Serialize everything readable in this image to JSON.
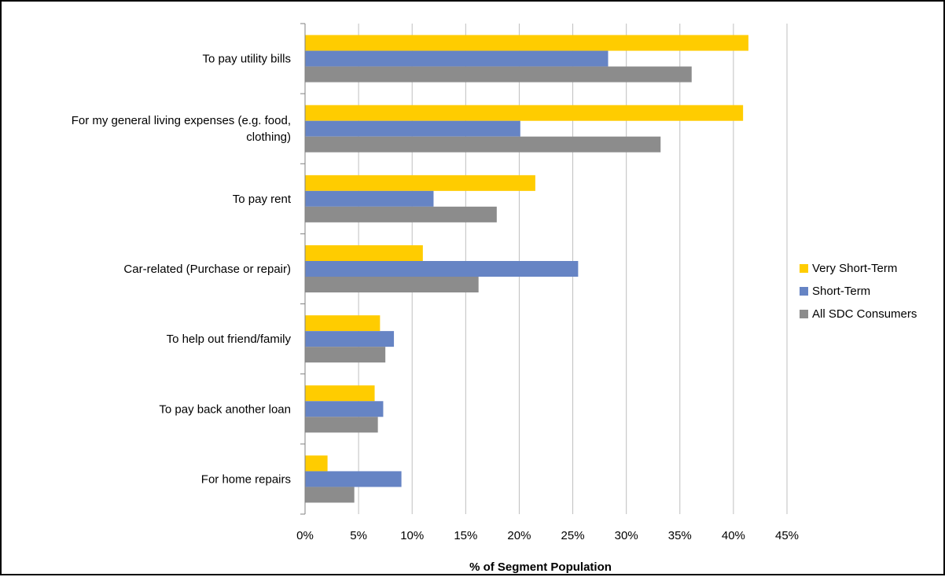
{
  "chart_data": {
    "type": "bar",
    "orientation": "horizontal",
    "categories": [
      [
        "To pay utility bills"
      ],
      [
        "For my general living expenses (e.g. food,",
        "clothing)"
      ],
      [
        "To pay rent"
      ],
      [
        "Car-related (Purchase or repair)"
      ],
      [
        "To help out friend/family"
      ],
      [
        "To pay back another loan"
      ],
      [
        "For home repairs"
      ]
    ],
    "series": [
      {
        "name": "Very Short-Term",
        "color": "#FFCC00",
        "values": [
          41.4,
          40.9,
          21.5,
          11.0,
          7.0,
          6.5,
          2.1
        ]
      },
      {
        "name": "Short-Term",
        "color": "#6684C4",
        "values": [
          28.3,
          20.1,
          12.0,
          25.5,
          8.3,
          7.3,
          9.0
        ]
      },
      {
        "name": "All SDC Consumers",
        "color": "#8C8C8C",
        "values": [
          36.1,
          33.2,
          17.9,
          16.2,
          7.5,
          6.8,
          4.6
        ]
      }
    ],
    "x_ticks": [
      "0%",
      "5%",
      "10%",
      "15%",
      "20%",
      "25%",
      "30%",
      "35%",
      "40%",
      "45%"
    ],
    "xlim": [
      0,
      45
    ],
    "xlabel": "% of Segment Population",
    "ylabel": "",
    "title": "",
    "grid": true,
    "legend_position": "right"
  }
}
